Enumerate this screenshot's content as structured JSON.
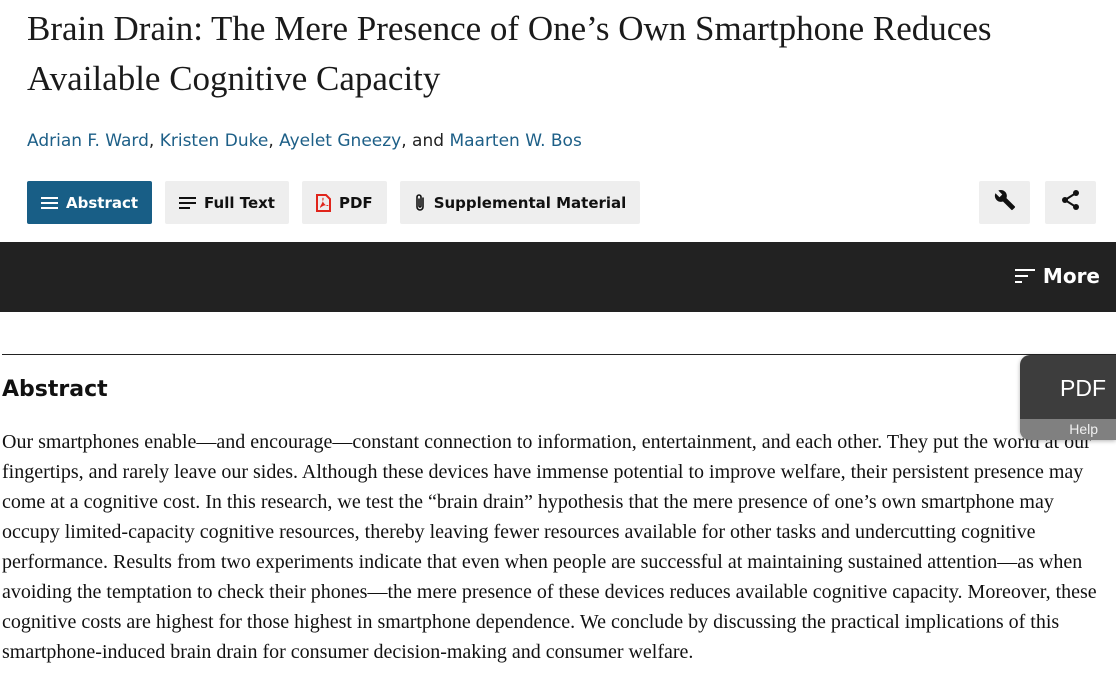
{
  "article": {
    "title": "Brain Drain: The Mere Presence of One’s Own Smartphone Reduces Available Cognitive Capacity",
    "authors": [
      "Adrian F. Ward",
      "Kristen Duke",
      "Ayelet Gneezy",
      "Maarten W. Bos"
    ],
    "author_sep": ", ",
    "author_last_sep": ", and "
  },
  "tabs": [
    {
      "label": "Abstract",
      "icon": "list-icon",
      "active": true
    },
    {
      "label": "Full Text",
      "icon": "text-lines-icon",
      "active": false
    },
    {
      "label": "PDF",
      "icon": "pdf-file-icon",
      "active": false
    },
    {
      "label": "Supplemental Material",
      "icon": "paperclip-icon",
      "active": false
    }
  ],
  "tools": [
    {
      "icon": "wrench-icon"
    },
    {
      "icon": "share-icon"
    }
  ],
  "navbar": {
    "more_label": "More",
    "more_icon": "sort-lines-icon"
  },
  "abstract": {
    "heading": "Abstract",
    "text": "Our smartphones enable—and encourage—constant connection to information, entertainment, and each other. They put the world at our fingertips, and rarely leave our sides. Although these devices have immense potential to improve welfare, their persistent presence may come at a cognitive cost. In this research, we test the “brain drain” hypothesis that the mere presence of one’s own smartphone may occupy limited-capacity cognitive resources, thereby leaving fewer resources available for other tasks and undercutting cognitive performance. Results from two experiments indicate that even when people are successful at maintaining sustained attention—as when avoiding the temptation to check their phones—the mere presence of these devices reduces available cognitive capacity. Moreover, these cognitive costs are highest for those highest in smartphone dependence. We conclude by discussing the practical implications of this smartphone-induced brain drain for consumer decision-making and consumer welfare."
  },
  "pdf_widget": {
    "label": "PDF",
    "help": "Help"
  },
  "colors": {
    "accent": "#185e86",
    "link": "#1d5f87",
    "navbar": "#222222"
  }
}
